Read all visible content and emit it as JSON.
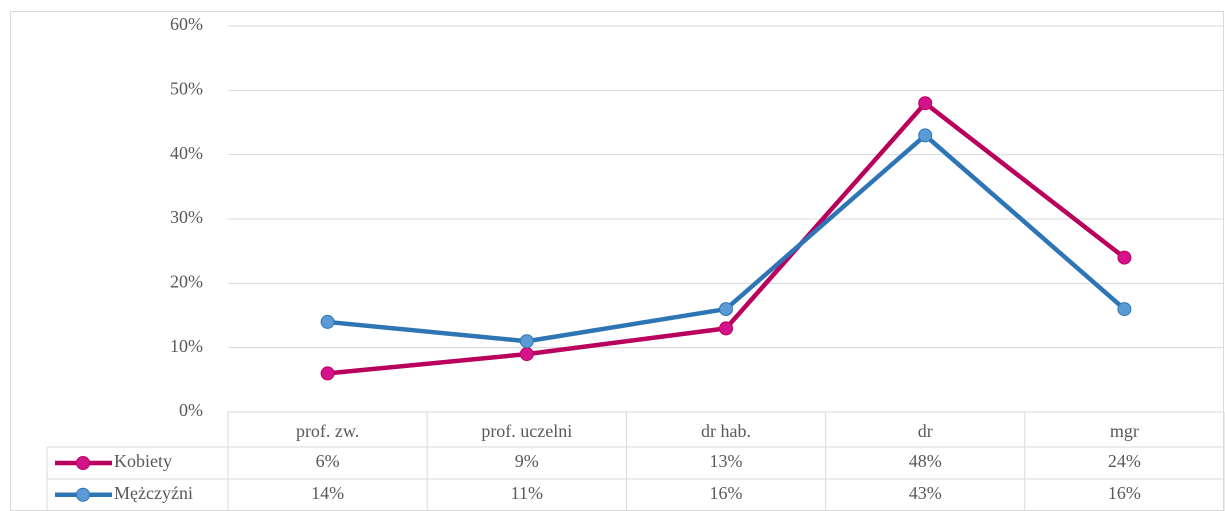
{
  "chart_data": {
    "type": "line",
    "categories": [
      "prof. zw.",
      "prof. uczelni",
      "dr hab.",
      "dr",
      "mgr"
    ],
    "series": [
      {
        "name": "Kobiety",
        "color": "#b8005c",
        "marker_color": "#d4138a",
        "values": [
          6,
          9,
          13,
          48,
          24
        ],
        "value_labels": [
          "6%",
          "9%",
          "13%",
          "48%",
          "24%"
        ]
      },
      {
        "name": "Mężczyźni",
        "color": "#2e75b6",
        "marker_color": "#5b9bd5",
        "values": [
          14,
          11,
          16,
          43,
          16
        ],
        "value_labels": [
          "14%",
          "11%",
          "16%",
          "43%",
          "16%"
        ]
      }
    ],
    "ylim": [
      0,
      60
    ],
    "yticks": [
      {
        "value": 0,
        "label": "0%"
      },
      {
        "value": 10,
        "label": "10%"
      },
      {
        "value": 20,
        "label": "20%"
      },
      {
        "value": 30,
        "label": "30%"
      },
      {
        "value": 40,
        "label": "40%"
      },
      {
        "value": 50,
        "label": "50%"
      },
      {
        "value": 60,
        "label": "60%"
      }
    ],
    "grid": true,
    "data_table": true
  }
}
